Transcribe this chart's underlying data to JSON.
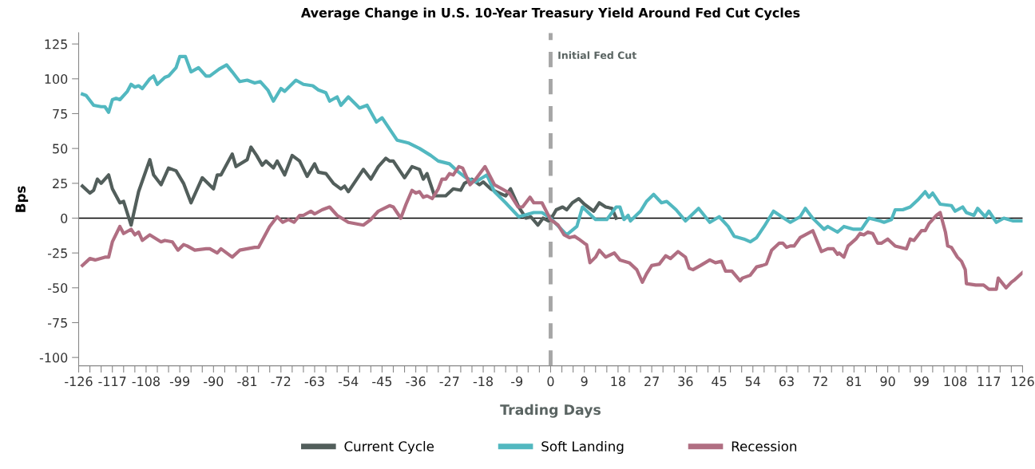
{
  "chart_data": {
    "type": "line",
    "title": "Average Change in U.S. 10-Year Treasury Yield Around Fed Cut Cycles",
    "xlabel": "Trading Days",
    "ylabel": "Bps",
    "xlim": [
      -126,
      126
    ],
    "ylim": [
      -106,
      133
    ],
    "xticks": [
      -126,
      {
        "value": -123,
        "label": null
      },
      {
        "value": -120,
        "label": null
      },
      -117,
      {
        "value": -114,
        "label": null
      },
      {
        "value": -111,
        "label": null
      },
      -108,
      {
        "value": -105,
        "label": null
      },
      {
        "value": -102,
        "label": null
      },
      -99,
      {
        "value": -96,
        "label": null
      },
      {
        "value": -93,
        "label": null
      },
      -90,
      {
        "value": -87,
        "label": null
      },
      {
        "value": -84,
        "label": null
      },
      -81,
      {
        "value": -78,
        "label": null
      },
      {
        "value": -75,
        "label": null
      },
      -72,
      {
        "value": -69,
        "label": null
      },
      {
        "value": -66,
        "label": null
      },
      -63,
      {
        "value": -60,
        "label": null
      },
      {
        "value": -57,
        "label": null
      },
      -54,
      {
        "value": -51,
        "label": null
      },
      {
        "value": -48,
        "label": null
      },
      -45,
      {
        "value": -42,
        "label": null
      },
      {
        "value": -39,
        "label": null
      },
      -36,
      {
        "value": -33,
        "label": null
      },
      {
        "value": -30,
        "label": null
      },
      -27,
      {
        "value": -24,
        "label": null
      },
      {
        "value": -21,
        "label": null
      },
      -18,
      {
        "value": -15,
        "label": null
      },
      {
        "value": -12,
        "label": null
      },
      -9,
      {
        "value": -6,
        "label": null
      },
      {
        "value": -3,
        "label": null
      },
      0,
      {
        "value": 3,
        "label": null
      },
      {
        "value": 6,
        "label": null
      },
      9,
      {
        "value": 12,
        "label": null
      },
      {
        "value": 15,
        "label": null
      },
      18,
      {
        "value": 21,
        "label": null
      },
      {
        "value": 24,
        "label": null
      },
      27,
      {
        "value": 30,
        "label": null
      },
      {
        "value": 33,
        "label": null
      },
      36,
      {
        "value": 39,
        "label": null
      },
      {
        "value": 42,
        "label": null
      },
      45,
      {
        "value": 48,
        "label": null
      },
      {
        "value": 51,
        "label": null
      },
      54,
      {
        "value": 57,
        "label": null
      },
      {
        "value": 60,
        "label": null
      },
      63,
      {
        "value": 66,
        "label": null
      },
      {
        "value": 69,
        "label": null
      },
      72,
      {
        "value": 75,
        "label": null
      },
      {
        "value": 78,
        "label": null
      },
      81,
      {
        "value": 84,
        "label": null
      },
      {
        "value": 87,
        "label": null
      },
      90,
      {
        "value": 93,
        "label": null
      },
      {
        "value": 96,
        "label": null
      },
      99,
      {
        "value": 102,
        "label": null
      },
      {
        "value": 105,
        "label": null
      },
      108,
      {
        "value": 111,
        "label": null
      },
      {
        "value": 114,
        "label": null
      },
      117,
      {
        "value": 120,
        "label": null
      },
      {
        "value": 123,
        "label": null
      },
      126
    ],
    "yticks": [
      -100,
      -75,
      -50,
      -25,
      0,
      25,
      50,
      75,
      100,
      125
    ],
    "grid": false,
    "legend": "bottom",
    "ref_lines": [
      {
        "axis": "x",
        "value": 0,
        "label": "Initial Fed Cut",
        "color": "#a6a6a6",
        "line_style": "dashed"
      },
      {
        "axis": "y",
        "value": 0,
        "label": null,
        "color": "#000000",
        "line_style": "solid"
      }
    ],
    "series": [
      {
        "name": "Current Cycle",
        "color": "#525e5b",
        "x": [
          -125,
          -123,
          -122,
          -121,
          -120,
          -118,
          -117,
          -115,
          -114,
          -112,
          -110,
          -107,
          -106,
          -104,
          -102,
          -100,
          -98,
          -96,
          -93,
          -90,
          -89,
          -88,
          -85,
          -84,
          -81,
          -80,
          -78.5,
          -77,
          -76,
          -74,
          -73,
          -71,
          -69,
          -67,
          -65,
          -63,
          -62,
          -60,
          -58,
          -56,
          -55,
          -54,
          -50,
          -48,
          -46,
          -44,
          -43,
          -42,
          -39,
          -37,
          -35,
          -34,
          -33,
          -31,
          -28,
          -26,
          -24,
          -23,
          -21,
          -19,
          -18,
          -16,
          -14.5,
          -12,
          -10.7,
          -8.5,
          -6.6,
          -5.3,
          -3.4,
          -2,
          -0.6,
          0,
          1.5,
          3.2,
          4.3,
          5.8,
          7.5,
          9,
          11.5,
          13,
          14.7,
          16.4,
          17.5
        ],
        "values": [
          23,
          18,
          20,
          28,
          25,
          31,
          21,
          11,
          12,
          -5,
          19,
          42,
          31,
          24,
          36,
          34,
          25,
          11,
          29,
          21,
          31,
          31,
          46,
          37,
          42,
          51,
          45,
          38,
          41,
          36,
          41,
          31,
          45,
          41,
          30,
          39,
          33,
          32,
          25,
          21,
          23,
          19,
          35,
          28,
          37,
          43,
          41,
          41,
          29,
          37,
          35,
          28,
          32,
          16,
          16,
          21,
          20,
          25,
          28,
          24,
          26,
          21,
          19,
          16,
          21,
          8,
          0,
          1,
          -5,
          0,
          -2,
          -1,
          6,
          8,
          6,
          11,
          14,
          10,
          5,
          11,
          8,
          7,
          0
        ]
      },
      {
        "name": "Soft Landing",
        "color": "#52b8c0",
        "x": [
          -125,
          -124,
          -122,
          -120,
          -119,
          -118,
          -117,
          -116,
          -115,
          -113,
          -112,
          -111,
          -110,
          -109,
          -107,
          -106,
          -105,
          -103,
          -102,
          -100,
          -99,
          -97.5,
          -96,
          -94,
          -92,
          -91,
          -88.5,
          -86.5,
          -85,
          -83,
          -81,
          -79,
          -77.5,
          -75.5,
          -74,
          -72,
          -71,
          -68,
          -66,
          -63.5,
          -62,
          -60,
          -59,
          -57,
          -56,
          -54,
          -51,
          -49,
          -46.5,
          -45,
          -41,
          -38,
          -35,
          -32,
          -30,
          -27,
          -25,
          -22.6,
          -20,
          -17,
          -15,
          -12,
          -8.5,
          -4.5,
          -2.3,
          0,
          4.3,
          7,
          8.5,
          12,
          15,
          17.5,
          18.5,
          19.6,
          20.7,
          21.3,
          24,
          25.6,
          27.5,
          29.6,
          31,
          33.5,
          36,
          39.5,
          42.5,
          45,
          47.4,
          49,
          51.6,
          53.3,
          55,
          57,
          59.5,
          61.7,
          64,
          66.6,
          68,
          69.8,
          73,
          74,
          76.6,
          78.3,
          80.9,
          83,
          85,
          88,
          89,
          91,
          92,
          94,
          96,
          98,
          100,
          101,
          102,
          104,
          107,
          108,
          110,
          111,
          113,
          114,
          116,
          117,
          119,
          121,
          123.5,
          126
        ],
        "values": [
          89,
          88,
          81,
          80,
          80,
          76,
          85,
          86,
          85,
          91,
          96,
          94,
          95,
          93,
          100,
          102,
          96,
          101,
          102,
          108,
          116,
          116,
          105,
          108,
          102,
          102,
          107,
          110,
          105,
          98,
          99,
          97,
          98,
          92,
          84,
          93,
          91,
          99,
          96,
          95,
          92,
          90,
          84,
          87,
          81,
          87,
          79,
          81,
          69,
          72,
          56,
          54,
          50,
          45,
          41,
          39,
          34,
          29,
          26,
          31,
          19,
          11,
          1,
          4,
          4,
          0,
          -12,
          -6,
          8,
          -1,
          -1,
          8,
          8,
          -1,
          2,
          -2,
          5,
          12,
          17,
          11,
          12,
          6,
          -2,
          7,
          -3,
          1,
          -6,
          -13,
          -15,
          -17,
          -14,
          -6,
          5,
          1,
          -3,
          1,
          7,
          0.5,
          -8,
          -6,
          -10,
          -6,
          -8,
          -8,
          0,
          -2,
          -3,
          -1,
          6,
          6,
          8,
          13,
          19,
          15,
          18,
          10,
          9,
          5,
          8,
          4,
          2,
          7,
          1,
          5,
          -3,
          0,
          -2,
          -2
        ]
      },
      {
        "name": "Recession",
        "color": "#b06e82",
        "x": [
          -125,
          -123,
          -121.6,
          -119,
          -118,
          -117,
          -115,
          -114,
          -112,
          -111,
          -110,
          -109,
          -107,
          -104,
          -103,
          -101,
          -99.5,
          -98,
          -97,
          -95,
          -92,
          -91,
          -89,
          -88,
          -85,
          -83,
          -79,
          -78,
          -77,
          -75,
          -73,
          -71.5,
          -70,
          -68.5,
          -67,
          -66,
          -64,
          -63,
          -61,
          -59,
          -57,
          -54,
          -50,
          -48,
          -46,
          -43,
          -42,
          -40,
          -38.6,
          -37,
          -36,
          -35,
          -34,
          -33,
          -31.6,
          -30,
          -29,
          -28,
          -27,
          -26,
          -24.5,
          -23.5,
          -21.5,
          -20,
          -17.5,
          -15,
          -13,
          -11,
          -8.7,
          -7.5,
          -5.5,
          -4.5,
          -2.3,
          -0.6,
          0,
          2,
          3.6,
          5,
          6.4,
          7.5,
          9,
          9.6,
          10.5,
          12,
          13,
          14.7,
          17,
          18.5,
          21,
          23,
          24.5,
          25.6,
          27,
          29,
          30.7,
          32,
          34,
          36,
          37,
          38,
          40,
          42.5,
          44,
          45.6,
          46.7,
          48.4,
          50.6,
          51.2,
          53.3,
          55,
          56.5,
          57.6,
          59,
          61,
          62,
          63,
          64,
          65,
          66.6,
          68,
          70,
          72.3,
          74,
          75.5,
          76.6,
          77,
          78.3,
          79.4,
          81.5,
          82.6,
          83.6,
          84.7,
          86,
          87.3,
          88.3,
          90,
          92,
          95,
          96,
          97,
          99,
          100,
          101,
          103,
          104,
          105.4,
          106,
          107,
          108.6,
          109.7,
          110.7,
          111,
          113.5,
          115.6,
          117,
          119,
          119.5,
          121,
          121.6,
          123,
          124,
          126
        ],
        "values": [
          -34,
          -29,
          -30,
          -28,
          -28,
          -17,
          -6,
          -11,
          -8,
          -12,
          -10,
          -16,
          -12,
          -17,
          -16,
          -17,
          -23,
          -19,
          -20,
          -23,
          -22,
          -22,
          -25,
          -22,
          -28,
          -23,
          -21,
          -21,
          -16,
          -6,
          1,
          -3,
          -1,
          -3,
          2,
          2,
          5,
          3,
          6,
          8,
          2,
          -3,
          -5,
          -1,
          5,
          9,
          8,
          0,
          10,
          20,
          18,
          19,
          15,
          16,
          14,
          21,
          28,
          28,
          32,
          31,
          37,
          36,
          24,
          28,
          37,
          24,
          21,
          18,
          8,
          8,
          15,
          11,
          11,
          2,
          -1,
          -5,
          -12,
          -14,
          -13,
          -15,
          -18,
          -19,
          -32,
          -28,
          -23,
          -28,
          -25,
          -30,
          -32,
          -37,
          -46,
          -40,
          -34,
          -33,
          -27,
          -29,
          -24,
          -28,
          -36,
          -37,
          -34,
          -30,
          -32,
          -31,
          -38,
          -38,
          -45,
          -43,
          -41,
          -35,
          -34,
          -33,
          -23,
          -18,
          -18,
          -21,
          -20,
          -20,
          -14,
          -12,
          -9,
          -24,
          -22,
          -22,
          -26,
          -25,
          -28,
          -20,
          -15,
          -11,
          -12,
          -10,
          -11,
          -18,
          -18,
          -15,
          -20,
          -22,
          -15,
          -16,
          -9,
          -9,
          -4,
          2,
          4,
          -10,
          -20,
          -21,
          -28,
          -31,
          -37,
          -47,
          -48,
          -48,
          -51,
          -51,
          -43,
          -48,
          -50,
          -46,
          -44,
          -39
        ]
      }
    ]
  }
}
